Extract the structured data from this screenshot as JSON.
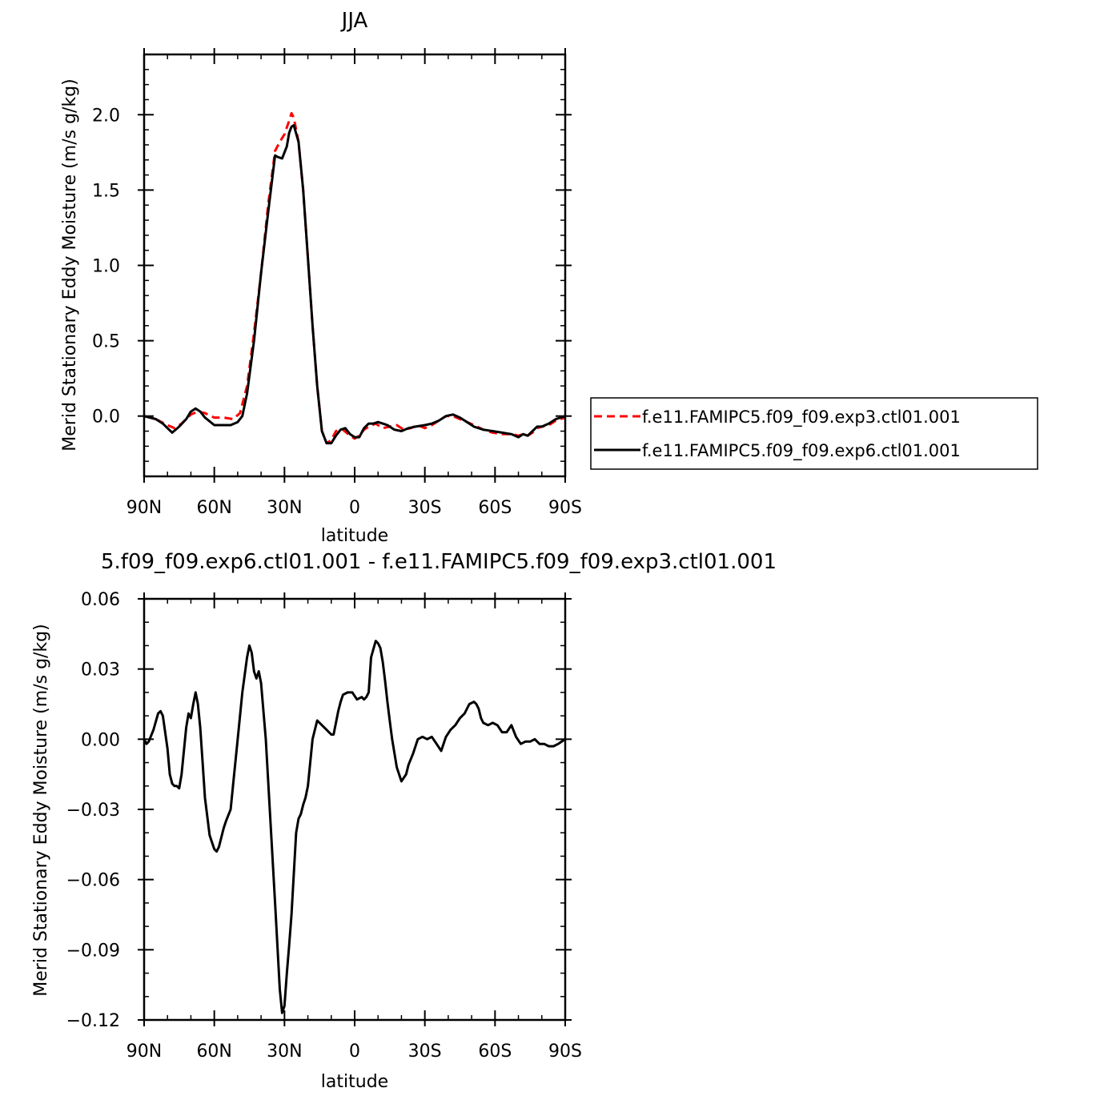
{
  "chart_data": [
    {
      "type": "line",
      "title": "JJA",
      "xlabel": "latitude",
      "ylabel": "Merid Stationary Eddy Moisture (m/s g/kg)",
      "xlim": [
        90,
        -90
      ],
      "ylim": [
        -0.4,
        2.4
      ],
      "x_ticks": [
        90,
        60,
        30,
        0,
        -30,
        -60,
        -90
      ],
      "x_tick_labels": [
        "90N",
        "60N",
        "30N",
        "0",
        "30S",
        "60S",
        "90S"
      ],
      "y_ticks": [
        0.0,
        0.5,
        1.0,
        1.5,
        2.0
      ],
      "y_tick_labels": [
        "0.0",
        "0.5",
        "1.0",
        "1.5",
        "2.0"
      ],
      "legend_position": "right",
      "series": [
        {
          "name": "f.e11.FAMIPC5.f09_f09.exp3.ctl01.001",
          "color": "#ff0000",
          "dash": "dashed",
          "x": [
            90,
            85,
            80,
            77,
            74,
            70,
            67,
            64,
            60,
            56,
            52,
            49,
            46,
            43,
            40,
            37,
            34,
            32,
            30,
            28,
            27,
            26,
            24,
            22,
            20,
            18,
            16,
            14,
            12,
            10,
            8,
            5,
            2,
            0,
            -2,
            -4,
            -6,
            -9,
            -12,
            -15,
            -18,
            -21,
            -24,
            -27,
            -30,
            -33,
            -36,
            -39,
            -42,
            -45,
            -48,
            -51,
            -55,
            -59,
            -63,
            -67,
            -70,
            -72,
            -74,
            -76,
            -78,
            -80,
            -83,
            -86,
            -90
          ],
          "y": [
            0.0,
            -0.02,
            -0.06,
            -0.08,
            -0.05,
            0.01,
            0.03,
            0.02,
            -0.01,
            -0.01,
            -0.02,
            0.02,
            0.2,
            0.55,
            0.95,
            1.4,
            1.76,
            1.82,
            1.87,
            1.96,
            2.01,
            1.98,
            1.82,
            1.5,
            1.05,
            0.6,
            0.2,
            -0.1,
            -0.18,
            -0.16,
            -0.1,
            -0.09,
            -0.13,
            -0.15,
            -0.13,
            -0.09,
            -0.07,
            -0.05,
            -0.08,
            -0.07,
            -0.06,
            -0.09,
            -0.08,
            -0.06,
            -0.08,
            -0.06,
            -0.03,
            0.0,
            0.0,
            -0.02,
            -0.04,
            -0.06,
            -0.09,
            -0.11,
            -0.12,
            -0.12,
            -0.13,
            -0.12,
            -0.13,
            -0.11,
            -0.08,
            -0.07,
            -0.06,
            -0.03,
            -0.01
          ]
        },
        {
          "name": "f.e11.FAMIPC5.f09_f09.exp6.ctl01.001",
          "color": "#000000",
          "dash": "solid",
          "x": [
            90,
            85,
            82,
            80,
            78,
            75,
            72,
            70,
            68,
            66,
            64,
            60,
            56,
            53,
            50,
            48,
            46,
            43,
            40,
            37,
            34,
            33,
            31,
            29,
            28,
            27,
            26,
            24,
            22,
            20,
            18,
            16,
            14,
            12,
            10,
            8,
            6,
            4,
            2,
            0,
            -2,
            -4,
            -6,
            -8,
            -10,
            -12,
            -14,
            -17,
            -20,
            -23,
            -26,
            -30,
            -33,
            -36,
            -39,
            -42,
            -45,
            -48,
            -51,
            -55,
            -59,
            -63,
            -67,
            -70,
            -72,
            -74,
            -76,
            -78,
            -80,
            -83,
            -86,
            -90
          ],
          "y": [
            0.0,
            -0.02,
            -0.05,
            -0.08,
            -0.11,
            -0.07,
            -0.02,
            0.03,
            0.05,
            0.03,
            -0.01,
            -0.06,
            -0.06,
            -0.06,
            -0.04,
            0.0,
            0.15,
            0.5,
            0.95,
            1.35,
            1.73,
            1.72,
            1.71,
            1.79,
            1.88,
            1.92,
            1.93,
            1.82,
            1.5,
            1.05,
            0.6,
            0.2,
            -0.1,
            -0.18,
            -0.18,
            -0.13,
            -0.09,
            -0.08,
            -0.12,
            -0.14,
            -0.14,
            -0.08,
            -0.05,
            -0.05,
            -0.04,
            -0.05,
            -0.06,
            -0.09,
            -0.1,
            -0.08,
            -0.07,
            -0.06,
            -0.05,
            -0.03,
            0.0,
            0.01,
            -0.01,
            -0.04,
            -0.07,
            -0.09,
            -0.1,
            -0.11,
            -0.12,
            -0.14,
            -0.12,
            -0.13,
            -0.1,
            -0.07,
            -0.07,
            -0.05,
            -0.02,
            0.0
          ]
        }
      ]
    },
    {
      "type": "line",
      "title": "5.f09_f09.exp6.ctl01.001 - f.e11.FAMIPC5.f09_f09.exp3.ctl01.001",
      "xlabel": "latitude",
      "ylabel": "Merid Stationary Eddy Moisture (m/s g/kg)",
      "xlim": [
        90,
        -90
      ],
      "ylim": [
        -0.12,
        0.06
      ],
      "x_ticks": [
        90,
        60,
        30,
        0,
        -30,
        -60,
        -90
      ],
      "x_tick_labels": [
        "90N",
        "60N",
        "30N",
        "0",
        "30S",
        "60S",
        "90S"
      ],
      "y_ticks": [
        0.06,
        0.03,
        0.0,
        -0.03,
        -0.06,
        -0.09,
        -0.12
      ],
      "y_tick_labels": [
        "0.06",
        "0.03",
        "0.00",
        "−0.03",
        "−0.06",
        "−0.09",
        "−0.12"
      ],
      "series": [
        {
          "color": "#000000",
          "dash": "solid",
          "x": [
            90,
            89,
            88,
            86,
            84,
            83,
            82,
            80,
            79,
            78,
            77,
            76,
            75,
            74,
            73,
            72,
            71,
            70,
            69,
            68,
            67,
            66,
            65,
            64,
            62,
            61,
            60,
            59,
            58,
            56,
            55,
            53,
            52,
            50,
            48,
            46,
            45,
            44,
            43,
            42,
            41,
            40,
            38,
            36,
            34,
            32,
            31,
            30,
            29,
            28,
            27,
            25,
            24,
            23,
            22,
            21,
            20,
            18,
            16,
            15,
            13,
            12,
            10,
            9,
            7,
            6,
            5,
            3,
            1,
            -1,
            -3,
            -4,
            -5,
            -6,
            -7,
            -9,
            -10,
            -11,
            -12,
            -13,
            -14,
            -15,
            -16,
            -18,
            -20,
            -22,
            -23,
            -25,
            -27,
            -29,
            -31,
            -33,
            -35,
            -37,
            -39,
            -41,
            -43,
            -45,
            -47,
            -49,
            -51,
            -52,
            -53,
            -54,
            -55,
            -57,
            -59,
            -61,
            -63,
            -65,
            -67,
            -69,
            -71,
            -73,
            -75,
            -77,
            -79,
            -81,
            -83,
            -85,
            -87,
            -90
          ],
          "y": [
            0.0,
            -0.002,
            -0.001,
            0.004,
            0.011,
            0.012,
            0.01,
            -0.004,
            -0.015,
            -0.019,
            -0.02,
            -0.02,
            -0.021,
            -0.015,
            -0.005,
            0.005,
            0.011,
            0.009,
            0.015,
            0.02,
            0.015,
            0.005,
            -0.01,
            -0.025,
            -0.041,
            -0.044,
            -0.047,
            -0.048,
            -0.046,
            -0.038,
            -0.035,
            -0.03,
            -0.02,
            0.0,
            0.02,
            0.035,
            0.04,
            0.037,
            0.029,
            0.026,
            0.029,
            0.024,
            0.0,
            -0.035,
            -0.07,
            -0.107,
            -0.117,
            -0.114,
            -0.1,
            -0.088,
            -0.075,
            -0.04,
            -0.034,
            -0.032,
            -0.028,
            -0.025,
            -0.02,
            0.0,
            0.008,
            0.007,
            0.005,
            0.004,
            0.002,
            0.002,
            0.012,
            0.016,
            0.019,
            0.02,
            0.02,
            0.017,
            0.018,
            0.017,
            0.018,
            0.02,
            0.035,
            0.042,
            0.041,
            0.039,
            0.033,
            0.025,
            0.016,
            0.008,
            0.0,
            -0.012,
            -0.018,
            -0.015,
            -0.011,
            -0.006,
            0.0,
            0.001,
            0.0,
            0.001,
            -0.002,
            -0.005,
            0.001,
            0.004,
            0.006,
            0.009,
            0.011,
            0.015,
            0.016,
            0.015,
            0.013,
            0.009,
            0.007,
            0.006,
            0.007,
            0.006,
            0.003,
            0.003,
            0.006,
            0.001,
            -0.002,
            -0.001,
            -0.001,
            0.0,
            -0.002,
            -0.002,
            -0.003,
            -0.003,
            -0.002,
            0.0
          ]
        }
      ]
    }
  ]
}
